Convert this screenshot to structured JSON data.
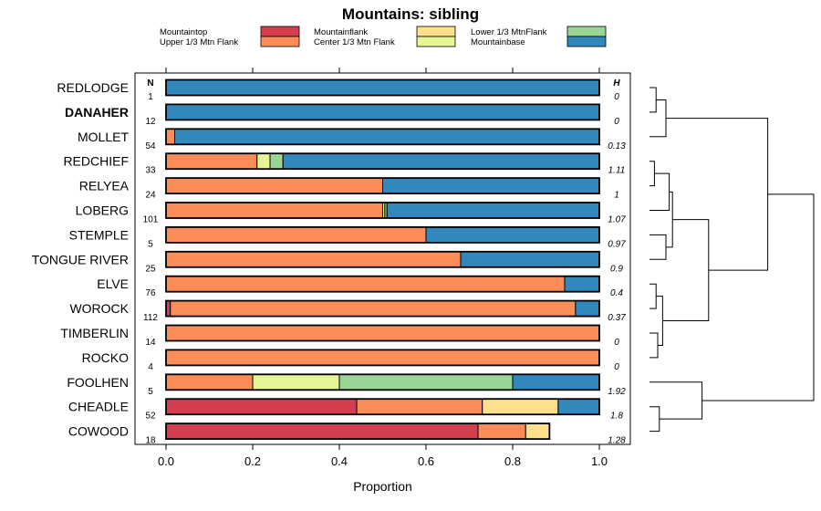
{
  "chart_data": {
    "type": "bar",
    "orientation": "horizontal",
    "stacked": true,
    "title": "Mountains: sibling",
    "xlabel": "Proportion",
    "ylabel": "",
    "xlim": [
      0,
      1
    ],
    "xticks": [
      "0.0",
      "0.2",
      "0.4",
      "0.6",
      "0.8",
      "1.0"
    ],
    "n_header": "N",
    "h_header": "H",
    "legend": [
      {
        "name": "Mountaintop",
        "color": "#d53e4f"
      },
      {
        "name": "Upper 1/3 Mtn Flank",
        "color": "#fc8d59"
      },
      {
        "name": "Mountainflank",
        "color": "#fee08b"
      },
      {
        "name": "Center 1/3 Mtn Flank",
        "color": "#e6f598"
      },
      {
        "name": "Lower 1/3 MtnFlank",
        "color": "#99d594"
      },
      {
        "name": "Mountainbase",
        "color": "#3288bd"
      }
    ],
    "categories": [
      "REDLODGE",
      "DANAHER",
      "MOLLET",
      "REDCHIEF",
      "RELYEA",
      "LOBERG",
      "STEMPLE",
      "TONGUE RIVER",
      "ELVE",
      "WOROCK",
      "TIMBERLIN",
      "ROCKO",
      "FOOLHEN",
      "CHEADLE",
      "COWOOD"
    ],
    "bold_category": "DANAHER",
    "N": [
      "1",
      "12",
      "54",
      "33",
      "24",
      "101",
      "5",
      "25",
      "76",
      "112",
      "14",
      "4",
      "5",
      "52",
      "18"
    ],
    "H": [
      "0",
      "0",
      "0.13",
      "1.11",
      "1",
      "1.07",
      "0.97",
      "0.9",
      "0.4",
      "0.37",
      "0",
      "0",
      "1.92",
      "1.8",
      "1.28"
    ],
    "series": [
      {
        "name": "Mountaintop",
        "values": [
          0,
          0,
          0,
          0,
          0,
          0,
          0,
          0,
          0,
          0.01,
          0,
          0,
          0,
          0.44,
          0.72
        ]
      },
      {
        "name": "Upper 1/3 Mtn Flank",
        "values": [
          0,
          0,
          0.02,
          0.21,
          0.5,
          0.5,
          0.6,
          0.68,
          0.92,
          0.935,
          1,
          1,
          0.2,
          0.29,
          0.11
        ]
      },
      {
        "name": "Mountainflank",
        "values": [
          0,
          0,
          0,
          0,
          0,
          0,
          0,
          0,
          0,
          0,
          0,
          0,
          0,
          0.175,
          0.055
        ]
      },
      {
        "name": "Center 1/3 Mtn Flank",
        "values": [
          0,
          0,
          0,
          0.03,
          0,
          0.005,
          0,
          0,
          0,
          0,
          0,
          0,
          0.2,
          0,
          0
        ]
      },
      {
        "name": "Lower 1/3 MtnFlank",
        "values": [
          0,
          0,
          0,
          0.03,
          0,
          0.005,
          0,
          0,
          0,
          0,
          0,
          0,
          0.4,
          0,
          0
        ]
      },
      {
        "name": "Mountainbase",
        "values": [
          1,
          1,
          0.98,
          0.73,
          0.5,
          0.49,
          0.4,
          0.32,
          0.08,
          0.055,
          0,
          0,
          0.2,
          0.095,
          0
        ]
      }
    ],
    "dendrogram": {
      "description": "hierarchical clustering of rows (leaf order matches categories)",
      "merges": [
        [
          0,
          1
        ],
        [
          -1,
          2
        ],
        [
          3,
          4
        ],
        [
          -3,
          5
        ],
        [
          6,
          7
        ],
        [
          -4,
          -5
        ],
        [
          8,
          9
        ],
        [
          10,
          11
        ],
        [
          -7,
          -8
        ],
        [
          -6,
          -9
        ],
        [
          -2,
          -10
        ],
        [
          13,
          14
        ],
        [
          12,
          -12
        ],
        [
          -11,
          -13
        ]
      ],
      "heights": [
        0.04,
        0.1,
        0.03,
        0.12,
        0.1,
        0.14,
        0.04,
        0.05,
        0.08,
        0.36,
        0.72,
        0.06,
        0.32,
        1.0
      ]
    }
  }
}
